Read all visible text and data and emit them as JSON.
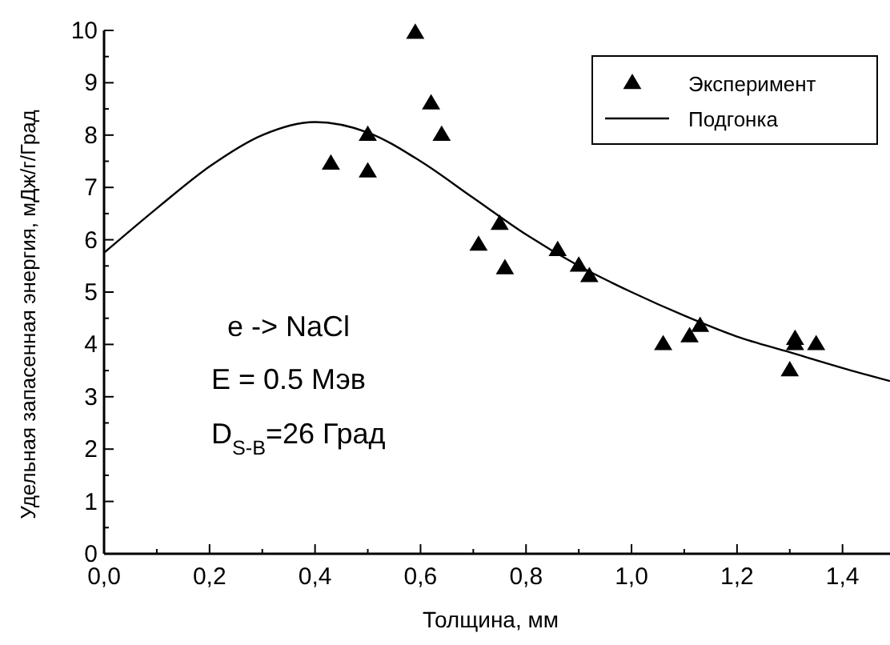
{
  "chart_data": {
    "type": "scatter",
    "xlabel": "Толщина, мм",
    "ylabel": "Удельная запасенная энергия, мДж/г/Град",
    "xlim": [
      0,
      1.49
    ],
    "ylim": [
      0,
      10
    ],
    "xticks": [
      {
        "value": 0,
        "label": "0,0"
      },
      {
        "value": 0.1,
        "label": null
      },
      {
        "value": 0.2,
        "label": "0,2"
      },
      {
        "value": 0.3,
        "label": null
      },
      {
        "value": 0.4,
        "label": "0,4"
      },
      {
        "value": 0.5,
        "label": null
      },
      {
        "value": 0.6,
        "label": "0,6"
      },
      {
        "value": 0.7,
        "label": null
      },
      {
        "value": 0.8,
        "label": "0,8"
      },
      {
        "value": 0.9,
        "label": null
      },
      {
        "value": 1.0,
        "label": "1,0"
      },
      {
        "value": 1.1,
        "label": null
      },
      {
        "value": 1.2,
        "label": "1,2"
      },
      {
        "value": 1.3,
        "label": null
      },
      {
        "value": 1.4,
        "label": "1,4"
      }
    ],
    "yticks": [
      0,
      {
        "value": 0.5,
        "label": null
      },
      1,
      {
        "value": 1.5,
        "label": null
      },
      2,
      {
        "value": 2.5,
        "label": null
      },
      3,
      {
        "value": 3.5,
        "label": null
      },
      4,
      {
        "value": 4.5,
        "label": null
      },
      5,
      {
        "value": 5.5,
        "label": null
      },
      6,
      {
        "value": 6.5,
        "label": null
      },
      7,
      {
        "value": 7.5,
        "label": null
      },
      8,
      {
        "value": 8.5,
        "label": null
      },
      9,
      {
        "value": 9.5,
        "label": null
      },
      10
    ],
    "grid": false,
    "legend": "top right",
    "series": [
      {
        "name": "Эксперимент",
        "marker": "triangle",
        "color": "#000000",
        "x": [
          0.43,
          0.5,
          0.5,
          0.59,
          0.62,
          0.64,
          0.71,
          0.75,
          0.76,
          0.86,
          0.9,
          0.92,
          1.06,
          1.11,
          1.13,
          1.3,
          1.31,
          1.31,
          1.35
        ],
        "values": [
          7.45,
          8.0,
          7.3,
          9.95,
          8.6,
          8.0,
          5.9,
          6.3,
          5.45,
          5.8,
          5.5,
          5.3,
          4.0,
          4.15,
          4.35,
          3.5,
          4.0,
          4.1,
          4.0
        ]
      },
      {
        "name": "Подгонка",
        "type": "line",
        "line_style": "solid",
        "color": "#000000",
        "x": [
          0,
          0.1,
          0.2,
          0.3,
          0.4,
          0.5,
          0.6,
          0.7,
          0.8,
          0.9,
          1.0,
          1.1,
          1.2,
          1.3,
          1.4,
          1.49
        ],
        "values": [
          5.75,
          6.6,
          7.4,
          8.0,
          8.25,
          8.05,
          7.5,
          6.8,
          6.1,
          5.5,
          5.0,
          4.55,
          4.15,
          3.85,
          3.55,
          3.3
        ]
      }
    ],
    "annotations": [
      "e -> NaCl",
      "E = 0.5 Мэв",
      "D$_{S-B}$=26 Град"
    ]
  }
}
